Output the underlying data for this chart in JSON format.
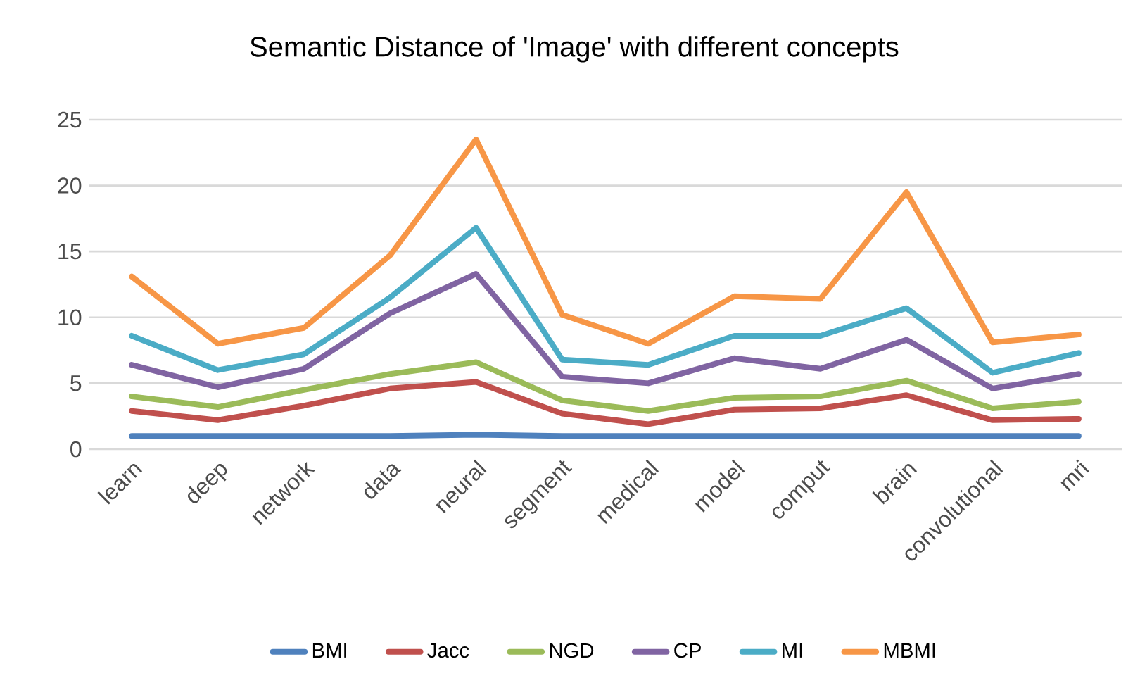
{
  "chart_data": {
    "type": "line",
    "title": "Semantic Distance of 'Image' with different concepts",
    "categories": [
      "learn",
      "deep",
      "network",
      "data",
      "neural",
      "segment",
      "medical",
      "model",
      "comput",
      "brain",
      "convolutional",
      "mri"
    ],
    "series": [
      {
        "name": "BMI",
        "color": "#4f81bd",
        "values": [
          1,
          1,
          1,
          1,
          1.1,
          1,
          1,
          1,
          1,
          1,
          1,
          1
        ]
      },
      {
        "name": "Jacc",
        "color": "#c0504d",
        "values": [
          2.9,
          2.2,
          3.3,
          4.6,
          5.1,
          2.7,
          1.9,
          3.0,
          3.1,
          4.1,
          2.2,
          2.3
        ]
      },
      {
        "name": "NGD",
        "color": "#9bbb59",
        "values": [
          4.0,
          3.2,
          4.5,
          5.7,
          6.6,
          3.7,
          2.9,
          3.9,
          4.0,
          5.2,
          3.1,
          3.6
        ]
      },
      {
        "name": "CP",
        "color": "#8064a2",
        "values": [
          6.4,
          4.7,
          6.1,
          10.3,
          13.3,
          5.5,
          5.0,
          6.9,
          6.1,
          8.3,
          4.6,
          5.7
        ]
      },
      {
        "name": "MI",
        "color": "#4bacc6",
        "values": [
          8.6,
          6.0,
          7.2,
          11.5,
          16.8,
          6.8,
          6.4,
          8.6,
          8.6,
          10.7,
          5.8,
          7.3
        ]
      },
      {
        "name": "MBMI",
        "color": "#f79646",
        "values": [
          13.1,
          8.0,
          9.2,
          14.7,
          23.5,
          10.2,
          8.0,
          11.6,
          11.4,
          19.5,
          8.1,
          8.7
        ]
      }
    ],
    "ylim": [
      0,
      25
    ],
    "yticks": [
      0,
      5,
      10,
      15,
      20,
      25
    ],
    "grid": "y",
    "legend": "bottom",
    "marker": "none",
    "line_style": "solid"
  }
}
